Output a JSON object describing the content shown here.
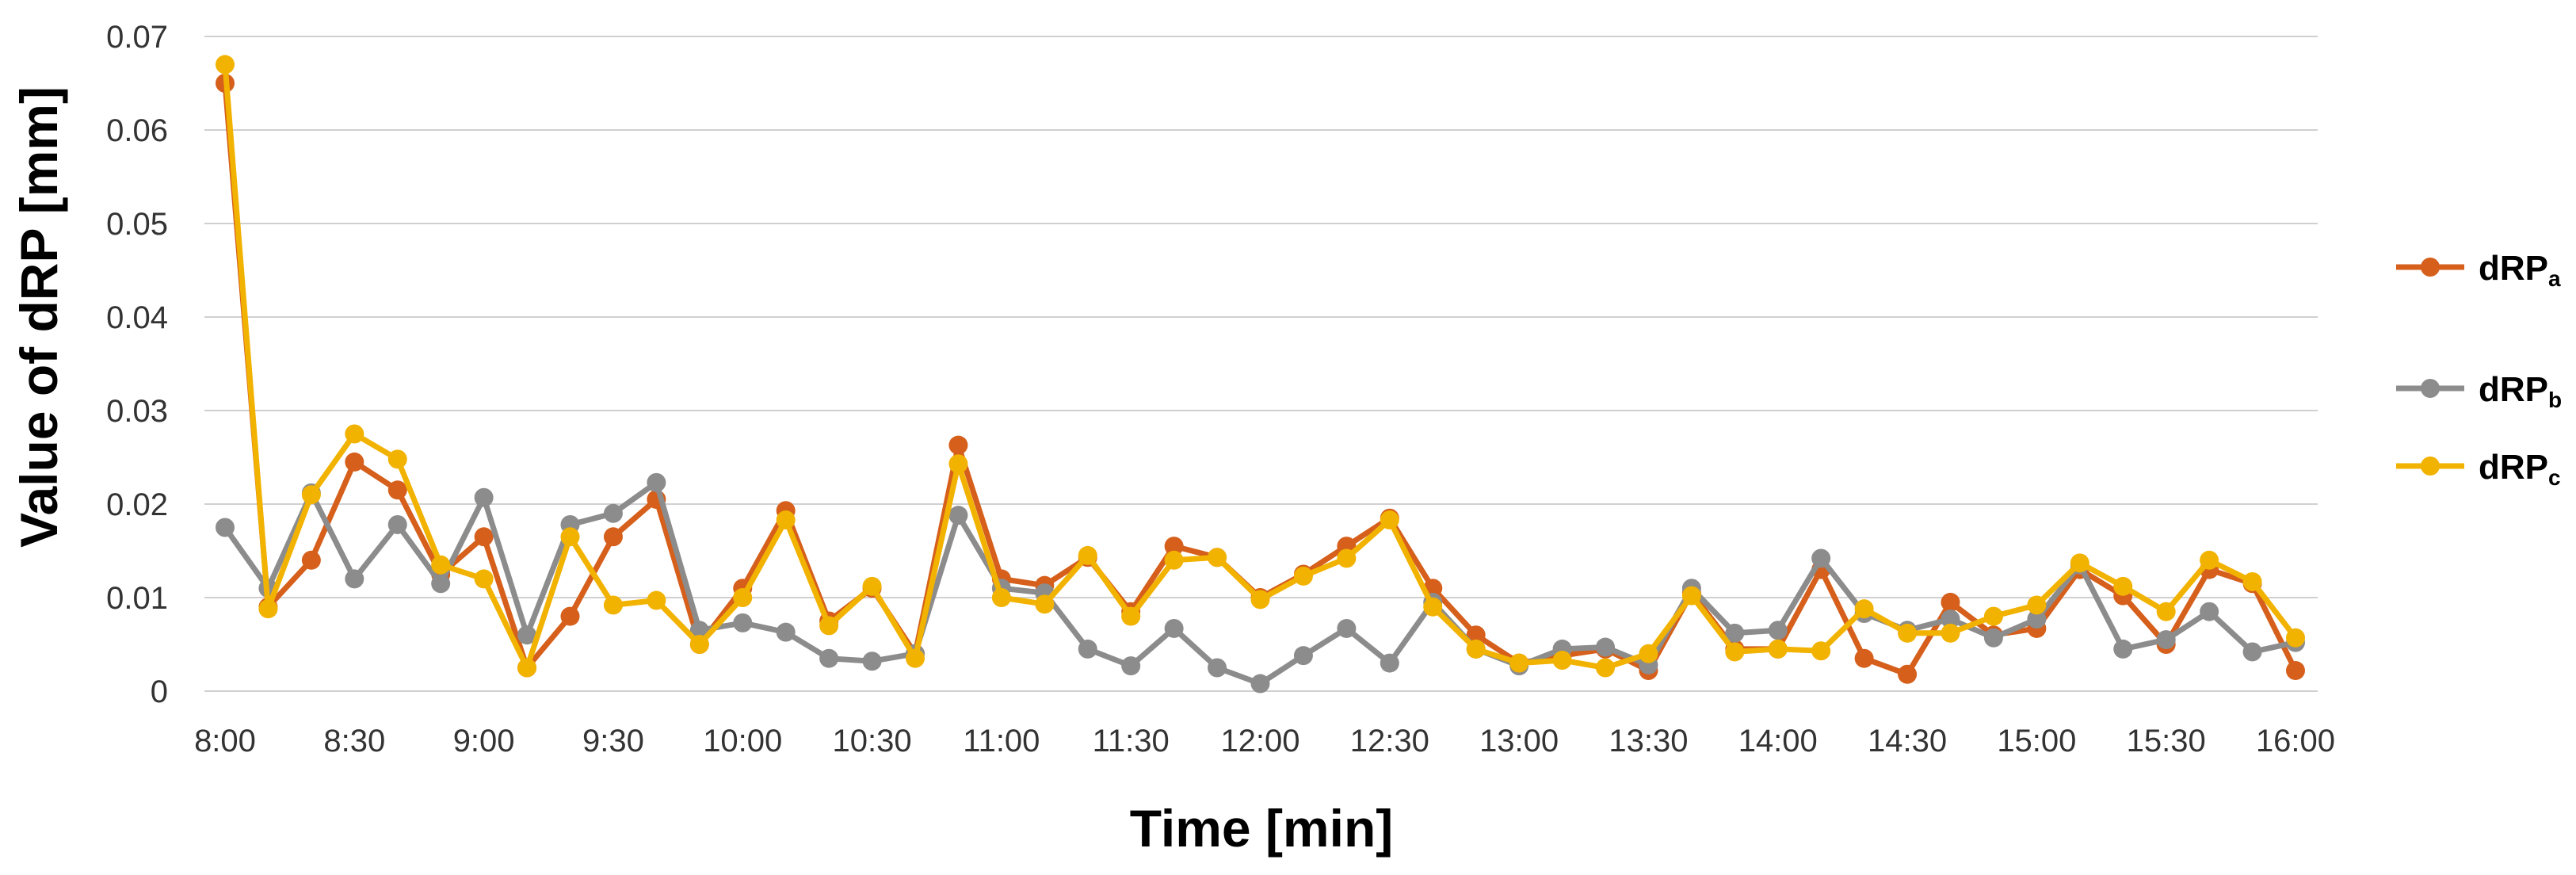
{
  "chart_data": {
    "type": "line",
    "title": "",
    "xlabel": "Time [min]",
    "ylabel": "Value of dRP [mm]",
    "ylim": [
      0,
      0.07
    ],
    "yticks": [
      "0",
      "0.01",
      "0.02",
      "0.03",
      "0.04",
      "0.05",
      "0.06",
      "0.07"
    ],
    "x_tick_labels": [
      "8:00",
      "8:30",
      "9:00",
      "9:30",
      "10:00",
      "10:30",
      "11:00",
      "11:30",
      "12:00",
      "12:30",
      "13:00",
      "13:30",
      "14:00",
      "14:30",
      "15:00",
      "15:30",
      "16:00"
    ],
    "x": [
      "8:00",
      "8:10",
      "8:20",
      "8:30",
      "8:40",
      "8:50",
      "9:00",
      "9:10",
      "9:20",
      "9:30",
      "9:40",
      "9:50",
      "10:00",
      "10:10",
      "10:20",
      "10:30",
      "10:40",
      "10:50",
      "11:00",
      "11:10",
      "11:20",
      "11:30",
      "11:40",
      "11:50",
      "12:00",
      "12:10",
      "12:20",
      "12:30",
      "12:40",
      "12:50",
      "13:00",
      "13:10",
      "13:20",
      "13:30",
      "13:40",
      "13:50",
      "14:00",
      "14:10",
      "14:20",
      "14:30",
      "14:40",
      "14:50",
      "15:00",
      "15:10",
      "15:20",
      "15:30",
      "15:40",
      "15:50",
      "16:00"
    ],
    "grid": true,
    "legend_position": "right",
    "series": [
      {
        "name": "dRP",
        "subscript": "a",
        "color": "#D55F1B",
        "values": [
          0.065,
          0.009,
          0.014,
          0.0245,
          0.0215,
          0.0125,
          0.0165,
          0.0025,
          0.008,
          0.0165,
          0.0205,
          0.005,
          0.011,
          0.0193,
          0.0075,
          0.011,
          0.004,
          0.0263,
          0.012,
          0.0113,
          0.0143,
          0.0085,
          0.0155,
          0.0143,
          0.01,
          0.0125,
          0.0155,
          0.0185,
          0.011,
          0.006,
          0.003,
          0.0038,
          0.0045,
          0.0022,
          0.0105,
          0.0045,
          0.0045,
          0.013,
          0.0035,
          0.0018,
          0.0095,
          0.006,
          0.0067,
          0.013,
          0.0102,
          0.005,
          0.013,
          0.0115,
          0.0022
        ]
      },
      {
        "name": "dRP",
        "subscript": "b",
        "color": "#8C8C8C",
        "values": [
          0.0175,
          0.011,
          0.0212,
          0.012,
          0.0178,
          0.0115,
          0.0207,
          0.006,
          0.0178,
          0.019,
          0.0223,
          0.0065,
          0.0073,
          0.0063,
          0.0035,
          0.0032,
          0.004,
          0.0188,
          0.011,
          0.0105,
          0.0045,
          0.0027,
          0.0067,
          0.0025,
          0.0008,
          0.0038,
          0.0067,
          0.003,
          0.0095,
          0.0045,
          0.0027,
          0.0045,
          0.0047,
          0.0028,
          0.011,
          0.0062,
          0.0065,
          0.0142,
          0.0083,
          0.0065,
          0.0077,
          0.0057,
          0.0077,
          0.0135,
          0.0045,
          0.0055,
          0.0085,
          0.0042,
          0.0052
        ]
      },
      {
        "name": "dRP",
        "subscript": "c",
        "color": "#F2B200",
        "values": [
          0.067,
          0.0088,
          0.021,
          0.0275,
          0.0248,
          0.0135,
          0.012,
          0.0025,
          0.0165,
          0.0092,
          0.0097,
          0.005,
          0.01,
          0.0183,
          0.007,
          0.0112,
          0.0035,
          0.0243,
          0.01,
          0.0093,
          0.0145,
          0.008,
          0.014,
          0.0143,
          0.0098,
          0.0123,
          0.0142,
          0.0183,
          0.009,
          0.0045,
          0.003,
          0.0033,
          0.0025,
          0.004,
          0.0102,
          0.0042,
          0.0045,
          0.0043,
          0.0088,
          0.0062,
          0.0062,
          0.008,
          0.0092,
          0.0137,
          0.0112,
          0.0085,
          0.014,
          0.0117,
          0.0057
        ]
      }
    ]
  }
}
